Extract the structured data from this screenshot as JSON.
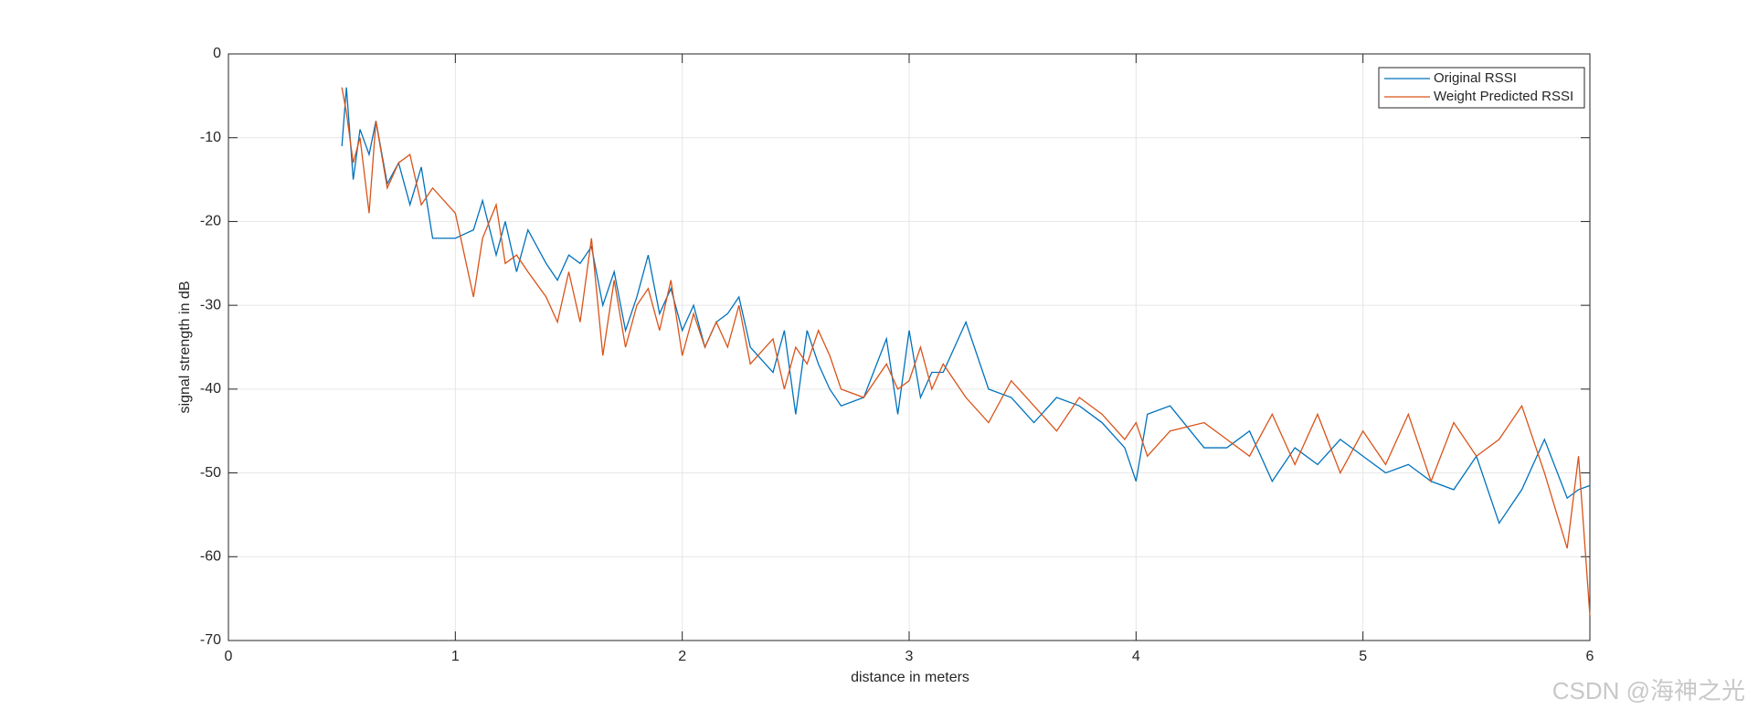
{
  "chart_data": {
    "type": "line",
    "xlabel": "distance in meters",
    "ylabel": "signal strength in dB",
    "xlim": [
      0,
      6
    ],
    "ylim": [
      -70,
      0
    ],
    "xticks": [
      0,
      1,
      2,
      3,
      4,
      5,
      6
    ],
    "yticks": [
      -70,
      -60,
      -50,
      -40,
      -30,
      -20,
      -10,
      0
    ],
    "grid": true,
    "legend": "upper right",
    "watermark": "CSDN @海神之光",
    "x": [
      0.5,
      0.52,
      0.55,
      0.58,
      0.62,
      0.65,
      0.7,
      0.75,
      0.8,
      0.85,
      0.9,
      1.0,
      1.08,
      1.12,
      1.18,
      1.22,
      1.27,
      1.32,
      1.4,
      1.45,
      1.5,
      1.55,
      1.6,
      1.65,
      1.7,
      1.75,
      1.8,
      1.85,
      1.9,
      1.95,
      2.0,
      2.05,
      2.1,
      2.15,
      2.2,
      2.25,
      2.3,
      2.4,
      2.45,
      2.5,
      2.55,
      2.6,
      2.65,
      2.7,
      2.8,
      2.9,
      2.95,
      3.0,
      3.05,
      3.1,
      3.15,
      3.25,
      3.35,
      3.45,
      3.55,
      3.65,
      3.75,
      3.85,
      3.95,
      4.0,
      4.05,
      4.15,
      4.3,
      4.4,
      4.5,
      4.6,
      4.7,
      4.8,
      4.9,
      5.0,
      5.1,
      5.2,
      5.3,
      5.4,
      5.5,
      5.6,
      5.7,
      5.8,
      5.9,
      5.95,
      6.0
    ],
    "series": [
      {
        "name": "Original RSSI",
        "color": "#0072bd",
        "values": [
          -11,
          -4,
          -15,
          -9,
          -12,
          -8,
          -15.5,
          -13,
          -18,
          -13.5,
          -22,
          -22,
          -21,
          -17.5,
          -24,
          -20,
          -26,
          -21,
          -25,
          -27,
          -24,
          -25,
          -23,
          -30,
          -26,
          -33,
          -29,
          -24,
          -31,
          -28,
          -33,
          -30,
          -35,
          -32,
          -31,
          -29,
          -35,
          -38,
          -33,
          -43,
          -33,
          -37,
          -40,
          -42,
          -41,
          -34,
          -43,
          -33,
          -41,
          -38,
          -38,
          -32,
          -40,
          -41,
          -44,
          -41,
          -42,
          -44,
          -47,
          -51,
          -43,
          -42,
          -47,
          -47,
          -45,
          -51,
          -47,
          -49,
          -46,
          -48,
          -50,
          -49,
          -51,
          -52,
          -48,
          -56,
          -52,
          -46,
          -53,
          -52,
          -51.5
        ]
      },
      {
        "name": "Weight Predicted RSSI",
        "color": "#d95319",
        "values": [
          -4,
          -7,
          -13,
          -10,
          -19,
          -8,
          -16,
          -13,
          -12,
          -18,
          -16,
          -19,
          -29,
          -22,
          -18,
          -25,
          -24,
          -26,
          -29,
          -32,
          -26,
          -32,
          -22,
          -36,
          -27,
          -35,
          -30,
          -28,
          -33,
          -27,
          -36,
          -31,
          -35,
          -32,
          -35,
          -30,
          -37,
          -34,
          -40,
          -35,
          -37,
          -33,
          -36,
          -40,
          -41,
          -37,
          -40,
          -39,
          -35,
          -40,
          -37,
          -41,
          -44,
          -39,
          -42,
          -45,
          -41,
          -43,
          -46,
          -44,
          -48,
          -45,
          -44,
          -46,
          -48,
          -43,
          -49,
          -43,
          -50,
          -45,
          -49,
          -43,
          -51,
          -44,
          -48,
          -46,
          -42,
          -50,
          -59,
          -48,
          -67
        ]
      }
    ]
  }
}
